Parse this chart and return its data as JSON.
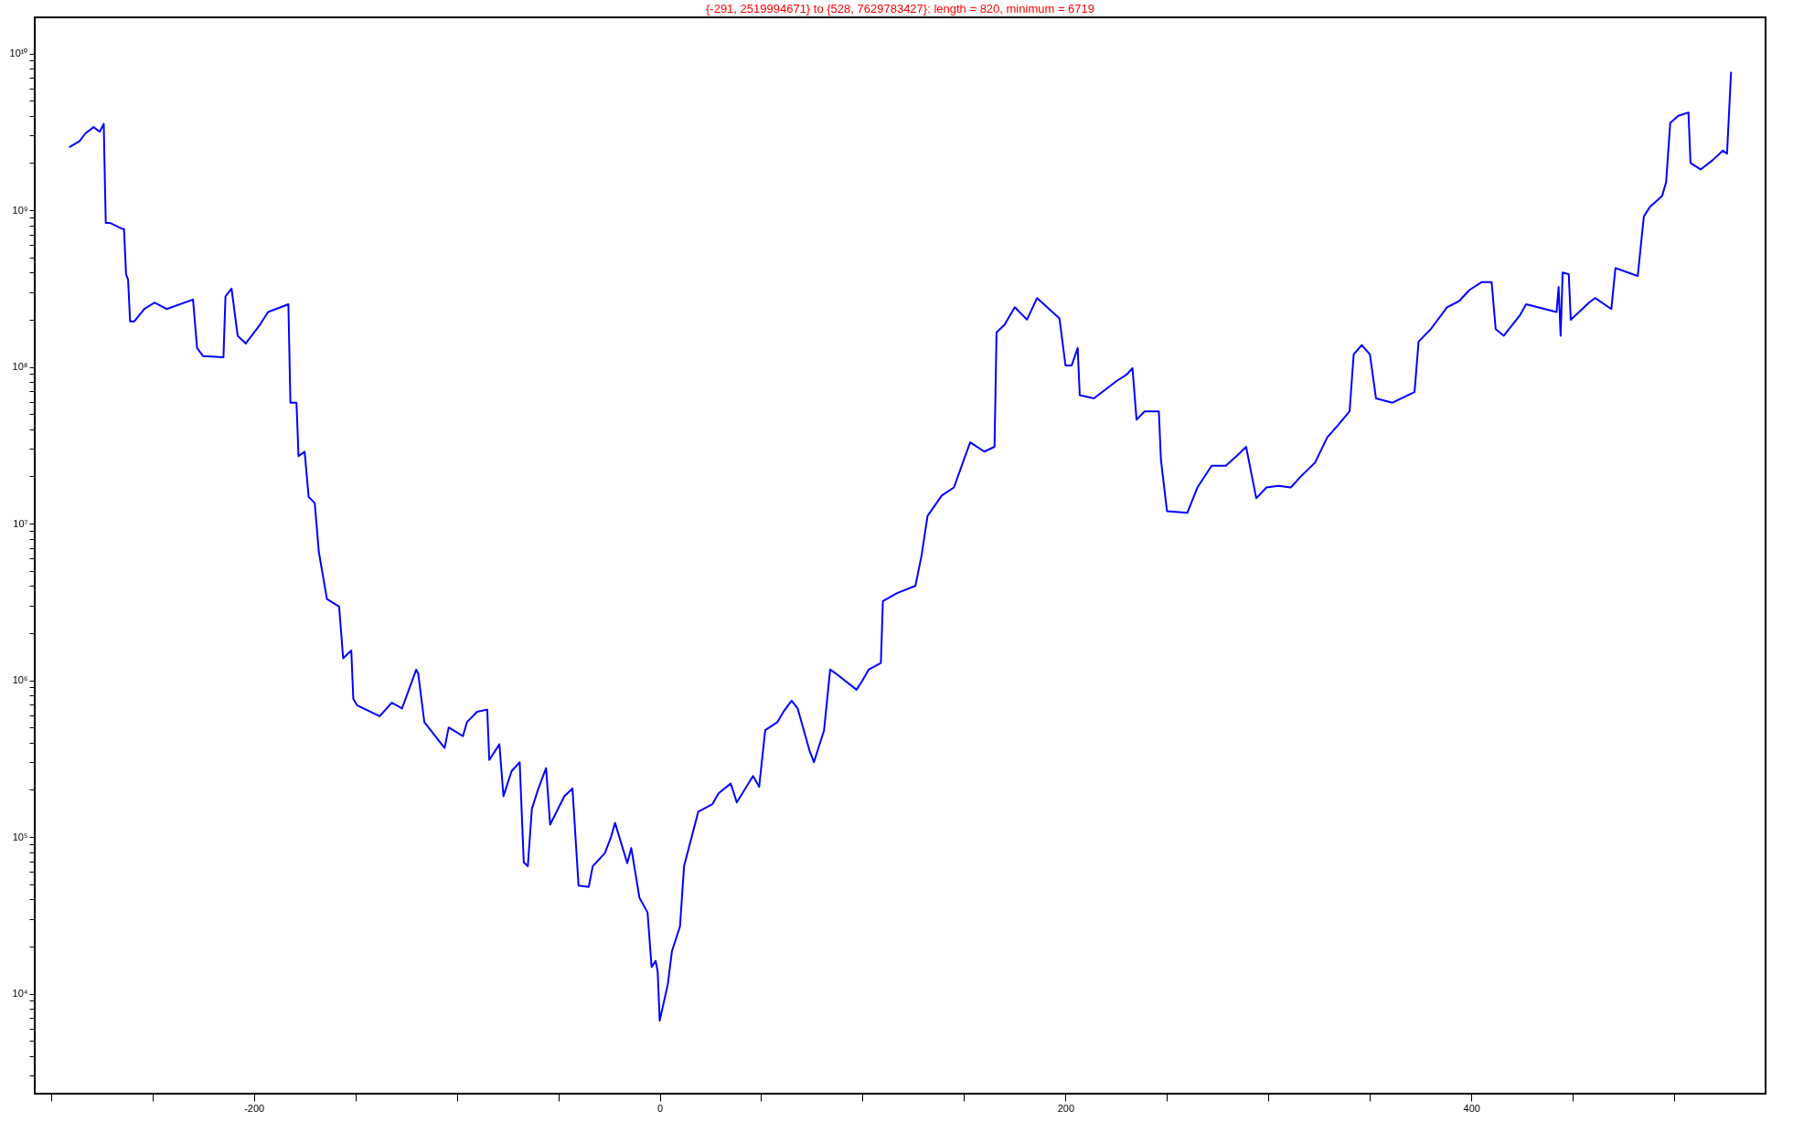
{
  "chart_data": {
    "type": "line",
    "title": "{-291, 2519994671} to {528, 7629783427}:      length = 820, minimum = 6719",
    "x": [
      -291,
      -286,
      -283,
      -279,
      -276,
      -274,
      -273,
      -271,
      -265,
      -264,
      -263,
      -262,
      -261,
      -259,
      -254,
      -249,
      -243,
      -230,
      -228,
      -225,
      -215,
      -214,
      -211,
      -208,
      -204,
      -197,
      -193,
      -183,
      -182,
      -179,
      -178,
      -175,
      -173,
      -170,
      -168,
      -164,
      -158,
      -156,
      -152,
      -151,
      -149,
      -138,
      -132,
      -127,
      -120,
      -119,
      -116,
      -106,
      -104,
      -97,
      -95,
      -90,
      -85,
      -84,
      -79,
      -77,
      -73,
      -69,
      -67,
      -65,
      -63,
      -60,
      -56,
      -54,
      -47,
      -43,
      -40,
      -35,
      -33,
      -27,
      -24,
      -22,
      -16,
      -14,
      -10,
      -6,
      -4,
      -2,
      -1,
      0,
      4,
      6,
      10,
      12,
      19,
      26,
      29,
      35,
      38,
      46,
      49,
      52,
      58,
      61,
      65,
      68,
      74,
      76,
      81,
      84,
      87,
      97,
      100,
      103,
      109,
      110,
      117,
      126,
      129,
      132,
      139,
      145,
      153,
      160,
      165,
      166,
      170,
      175,
      181,
      186,
      197,
      200,
      203,
      206,
      207,
      214,
      225,
      230,
      233,
      235,
      239,
      246,
      247,
      250,
      260,
      265,
      272,
      279,
      285,
      289,
      294,
      299,
      305,
      311,
      316,
      323,
      329,
      334,
      340,
      342,
      346,
      350,
      353,
      361,
      372,
      374,
      380,
      388,
      394,
      399,
      405,
      410,
      412,
      416,
      424,
      427,
      442,
      443,
      444,
      445,
      448,
      449,
      458,
      461,
      469,
      471,
      482,
      485,
      488,
      494,
      496,
      498,
      502,
      507,
      508,
      513,
      519,
      524,
      526,
      528
    ],
    "values": [
      2519994671,
      2750000000.0,
      3090000000.0,
      3390000000.0,
      3160000000.0,
      3550000000.0,
      830000000.0,
      830000000.0,
      760000000.0,
      760000000.0,
      390000000.0,
      360000000.0,
      195000000.0,
      195000000.0,
      234000000.0,
      257000000.0,
      234000000.0,
      269000000.0,
      132000000.0,
      117000000.0,
      115000000.0,
      282000000.0,
      316000000.0,
      158000000.0,
      141000000.0,
      186000000.0,
      224000000.0,
      251000000.0,
      59000000.0,
      59000000.0,
      26900000.0,
      28800000.0,
      14800000.0,
      13500000.0,
      6600000.0,
      3300000.0,
      2950000.0,
      1380000.0,
      1550000.0,
      760000.0,
      690000.0,
      590000.0,
      720000.0,
      660000.0,
      1170000.0,
      1100000.0,
      540000.0,
      370000.0,
      500000.0,
      440000.0,
      540000.0,
      630000.0,
      650000.0,
      310000.0,
      390000.0,
      182000.0,
      263000.0,
      300000.0,
      69000.0,
      65000.0,
      151000.0,
      200000.0,
      275000.0,
      120000.0,
      182000.0,
      204000.0,
      49000.0,
      48000.0,
      65000.0,
      79000.0,
      100000.0,
      123000.0,
      68000.0,
      85000.0,
      41000.0,
      33000.0,
      14800.0,
      16200.0,
      13800.0,
      6719,
      11500.0,
      18600.0,
      26900.0,
      65000.0,
      145000.0,
      162000.0,
      190000.0,
      219000.0,
      166000.0,
      245000.0,
      209000.0,
      480000.0,
      540000.0,
      630000.0,
      740000.0,
      660000.0,
      350000.0,
      300000.0,
      480000.0,
      1170000.0,
      1100000.0,
      870000.0,
      1000000.0,
      1170000.0,
      1290000.0,
      3200000.0,
      3600000.0,
      4000000.0,
      6200000.0,
      11200000.0,
      15100000.0,
      17000000.0,
      33000000.0,
      28800000.0,
      30900000.0,
      166000000.0,
      186000000.0,
      240000000.0,
      200000000.0,
      275000000.0,
      204000000.0,
      102000000.0,
      102000000.0,
      132000000.0,
      66000000.0,
      63000000.0,
      81000000.0,
      89000000.0,
      98000000.0,
      46000000.0,
      52000000.0,
      52000000.0,
      25700000.0,
      12000000.0,
      11700000.0,
      17000000.0,
      23400000.0,
      23400000.0,
      27500000.0,
      30900000.0,
      14500000.0,
      17000000.0,
      17400000.0,
      17000000.0,
      20000000.0,
      24500000.0,
      35500000.0,
      42000000.0,
      52000000.0,
      120000000.0,
      138000000.0,
      120000000.0,
      63000000.0,
      59000000.0,
      69000000.0,
      145000000.0,
      174000000.0,
      240000000.0,
      263000000.0,
      309000000.0,
      347000000.0,
      347000000.0,
      174000000.0,
      158000000.0,
      214000000.0,
      251000000.0,
      224000000.0,
      324000000.0,
      158000000.0,
      400000000.0,
      390000000.0,
      200000000.0,
      257000000.0,
      275000000.0,
      234000000.0,
      427000000.0,
      380000000.0,
      910000000.0,
      1050000000.0,
      1230000000.0,
      1510000000.0,
      3600000000.0,
      4000000000.0,
      4200000000.0,
      2000000000.0,
      1820000000.0,
      2090000000.0,
      2400000000.0,
      2290000000.0,
      7629783427
    ],
    "color": "#0000ff",
    "log": true,
    "grid": false,
    "marker": "none",
    "line_style": "solid",
    "xlim": [
      -308,
      545
    ],
    "xticks": [
      {
        "value": -300,
        "label": null
      },
      {
        "value": -250,
        "label": null
      },
      -200,
      {
        "value": -150,
        "label": null
      },
      {
        "value": -100,
        "label": null
      },
      {
        "value": -50,
        "label": null
      },
      0,
      {
        "value": 50,
        "label": null
      },
      {
        "value": 100,
        "label": null
      },
      {
        "value": 150,
        "label": null
      },
      200,
      {
        "value": 250,
        "label": null
      },
      {
        "value": 300,
        "label": null
      },
      {
        "value": 350,
        "label": null
      },
      400,
      {
        "value": 450,
        "label": null
      },
      {
        "value": 500,
        "label": null
      }
    ],
    "ylim": [
      2300,
      17000000000
    ],
    "yticks": [
      {
        "value": 3000,
        "label": null
      },
      {
        "value": 4000,
        "label": null
      },
      {
        "value": 5000,
        "label": null
      },
      {
        "value": 6000,
        "label": null
      },
      {
        "value": 7000,
        "label": null
      },
      {
        "value": 8000,
        "label": null
      },
      {
        "value": 9000,
        "label": null
      },
      {
        "value": 10000,
        "label": "10⁴"
      },
      {
        "value": 20000,
        "label": null
      },
      {
        "value": 30000,
        "label": null
      },
      {
        "value": 40000,
        "label": null
      },
      {
        "value": 50000,
        "label": null
      },
      {
        "value": 60000,
        "label": null
      },
      {
        "value": 70000,
        "label": null
      },
      {
        "value": 80000,
        "label": null
      },
      {
        "value": 90000,
        "label": null
      },
      {
        "value": 100000,
        "label": "10⁵"
      },
      {
        "value": 200000,
        "label": null
      },
      {
        "value": 300000,
        "label": null
      },
      {
        "value": 400000,
        "label": null
      },
      {
        "value": 500000,
        "label": null
      },
      {
        "value": 600000,
        "label": null
      },
      {
        "value": 700000,
        "label": null
      },
      {
        "value": 800000,
        "label": null
      },
      {
        "value": 900000,
        "label": null
      },
      {
        "value": 1000000,
        "label": "10⁶"
      },
      {
        "value": 2000000,
        "label": null
      },
      {
        "value": 3000000,
        "label": null
      },
      {
        "value": 4000000,
        "label": null
      },
      {
        "value": 5000000,
        "label": null
      },
      {
        "value": 6000000,
        "label": null
      },
      {
        "value": 7000000,
        "label": null
      },
      {
        "value": 8000000,
        "label": null
      },
      {
        "value": 9000000,
        "label": null
      },
      {
        "value": 10000000,
        "label": "10⁷"
      },
      {
        "value": 20000000,
        "label": null
      },
      {
        "value": 30000000,
        "label": null
      },
      {
        "value": 40000000,
        "label": null
      },
      {
        "value": 50000000,
        "label": null
      },
      {
        "value": 60000000,
        "label": null
      },
      {
        "value": 70000000,
        "label": null
      },
      {
        "value": 80000000,
        "label": null
      },
      {
        "value": 90000000,
        "label": null
      },
      {
        "value": 100000000,
        "label": "10⁸"
      },
      {
        "value": 200000000,
        "label": null
      },
      {
        "value": 300000000,
        "label": null
      },
      {
        "value": 400000000,
        "label": null
      },
      {
        "value": 500000000,
        "label": null
      },
      {
        "value": 600000000,
        "label": null
      },
      {
        "value": 700000000,
        "label": null
      },
      {
        "value": 800000000,
        "label": null
      },
      {
        "value": 900000000,
        "label": null
      },
      {
        "value": 1000000000,
        "label": "10⁹"
      },
      {
        "value": 2000000000,
        "label": null
      },
      {
        "value": 3000000000,
        "label": null
      },
      {
        "value": 4000000000,
        "label": null
      },
      {
        "value": 5000000000,
        "label": null
      },
      {
        "value": 6000000000,
        "label": null
      },
      {
        "value": 7000000000,
        "label": null
      },
      {
        "value": 8000000000,
        "label": null
      },
      {
        "value": 9000000000,
        "label": null
      },
      {
        "value": 10000000000,
        "label": "10¹⁰"
      }
    ]
  }
}
